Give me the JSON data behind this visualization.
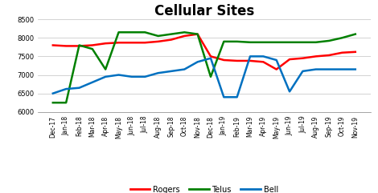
{
  "title": "Cellular Sites",
  "labels": [
    "Dec-17",
    "Jan-18",
    "Feb-18",
    "Mar-18",
    "Apr-18",
    "May-18",
    "Jun-18",
    "Jul-18",
    "Aug-18",
    "Sep-18",
    "Oct-18",
    "Nov-18",
    "Dec-18",
    "Jan-19",
    "Feb-19",
    "Mar-19",
    "Apr-19",
    "May-19",
    "Jun-19",
    "Jul-19",
    "Aug-19",
    "Sep-19",
    "Oct-19",
    "Nov-19"
  ],
  "rogers": [
    7800,
    7780,
    7780,
    7800,
    7850,
    7870,
    7870,
    7870,
    7900,
    7950,
    8050,
    8100,
    7500,
    7400,
    7380,
    7380,
    7350,
    7150,
    7420,
    7450,
    7500,
    7530,
    7600,
    7620
  ],
  "telus": [
    6250,
    6250,
    7800,
    7700,
    7150,
    8150,
    8150,
    8150,
    8050,
    8100,
    8150,
    8100,
    6950,
    7900,
    7900,
    7880,
    7880,
    7880,
    7880,
    7880,
    7880,
    7920,
    8000,
    8100
  ],
  "bell": [
    6500,
    6620,
    6650,
    6800,
    6950,
    7000,
    6950,
    6950,
    7050,
    7100,
    7150,
    7350,
    7450,
    6400,
    6400,
    7500,
    7500,
    7400,
    6550,
    7100,
    7150,
    7150,
    7150,
    7150
  ],
  "rogers_color": "#FF0000",
  "telus_color": "#008000",
  "bell_color": "#0070C0",
  "ylim": [
    6000,
    8500
  ],
  "yticks": [
    6000,
    6500,
    7000,
    7500,
    8000,
    8500
  ],
  "title_fontsize": 12,
  "tick_fontsize": 6,
  "xtick_fontsize": 5.5,
  "linewidth": 1.8,
  "legend_entries": [
    "Rogers",
    "Telus",
    "Bell"
  ],
  "bg_color": "#FFFFFF"
}
